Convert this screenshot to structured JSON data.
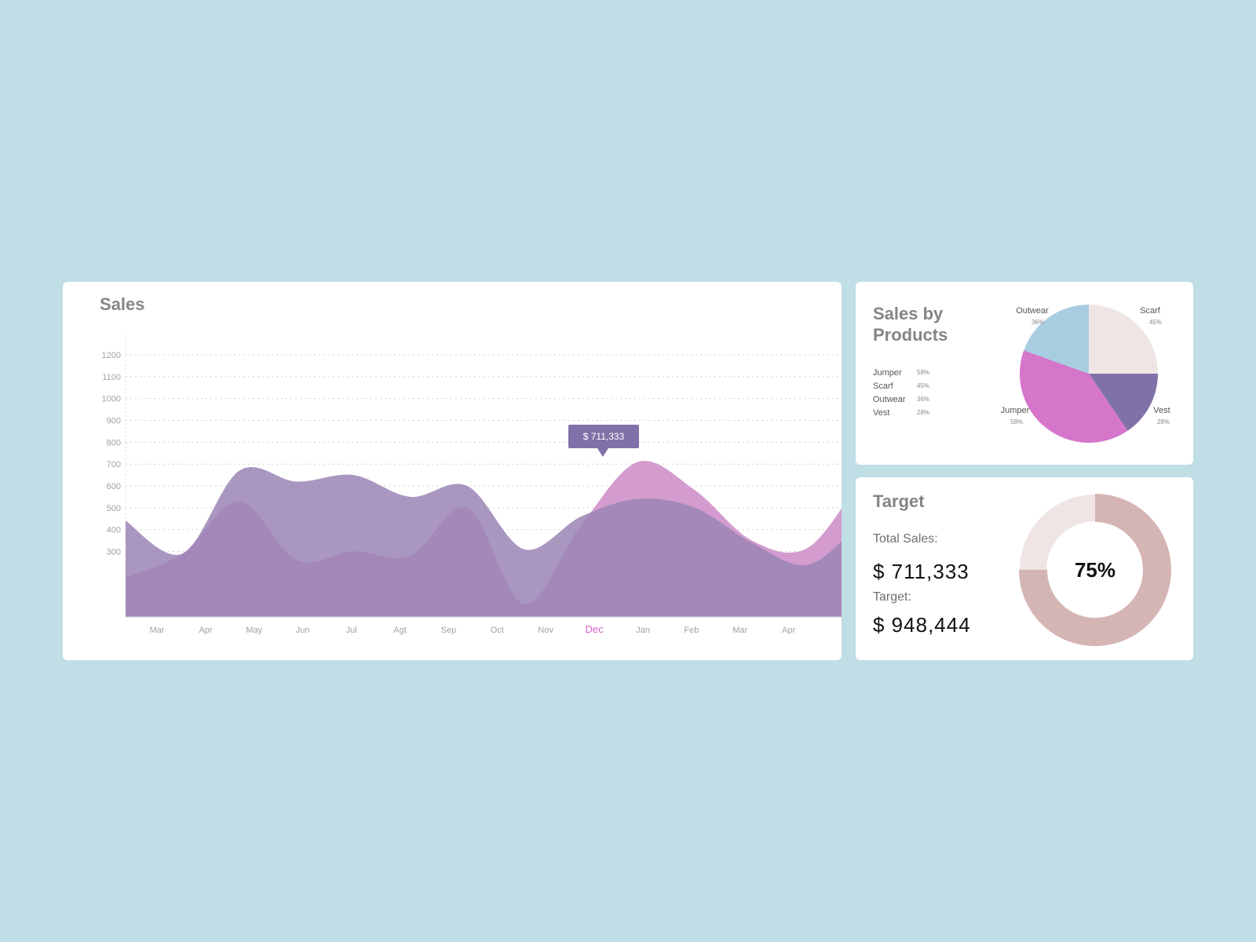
{
  "sales": {
    "title": "Sales",
    "tooltip": "$ 711,333",
    "highlight_month": "Dec",
    "colors": {
      "pink": "#d39bce",
      "purple": "#8f76ad",
      "highlight": "#d45fc6"
    }
  },
  "products": {
    "title_line1": "Sales by",
    "title_line2": "Products",
    "legend": [
      {
        "name": "Jumper",
        "pct": "58%"
      },
      {
        "name": "Scarf",
        "pct": "45%"
      },
      {
        "name": "Outwear",
        "pct": "36%"
      },
      {
        "name": "Vest",
        "pct": "28%"
      }
    ]
  },
  "target": {
    "title": "Target",
    "total_label": "Total Sales:",
    "total_value": "$ 711,333",
    "target_label": "Target:",
    "target_value": "$ 948,444",
    "percent_label": "75%",
    "progress": 0.75,
    "colors": {
      "fill": "#d5b5b4",
      "track": "#f0e5e5"
    }
  },
  "chart_data": [
    {
      "type": "area",
      "title": "Sales",
      "x": [
        "Mar",
        "Apr",
        "May",
        "Jun",
        "Jul",
        "Agt",
        "Sep",
        "Oct",
        "Nov",
        "Dec",
        "Jan",
        "Feb",
        "Mar",
        "Apr"
      ],
      "yticks": [
        300,
        400,
        500,
        600,
        700,
        800,
        900,
        1000,
        1100,
        1200
      ],
      "ylim": [
        0,
        1240
      ],
      "grid": true,
      "series": [
        {
          "color": "#d39bce",
          "values": [
            180,
            290,
            530,
            260,
            300,
            280,
            500,
            60,
            420,
            710,
            580,
            350,
            320,
            670
          ]
        },
        {
          "color": "#9a85b5",
          "values": [
            440,
            290,
            670,
            620,
            650,
            550,
            600,
            310,
            460,
            540,
            500,
            340,
            240,
            460
          ]
        }
      ]
    },
    {
      "type": "pie",
      "title": "Sales by Products",
      "labels": [
        "Scarf",
        "Vest",
        "Jumper",
        "Outwear"
      ],
      "percent_labels": [
        "45%",
        "28%",
        "58%",
        "36%"
      ],
      "values": [
        25,
        15.5,
        40,
        19.5
      ],
      "colors": [
        "#f0e5e5",
        "#8072a8",
        "#d576cb",
        "#a8cde0"
      ]
    }
  ]
}
